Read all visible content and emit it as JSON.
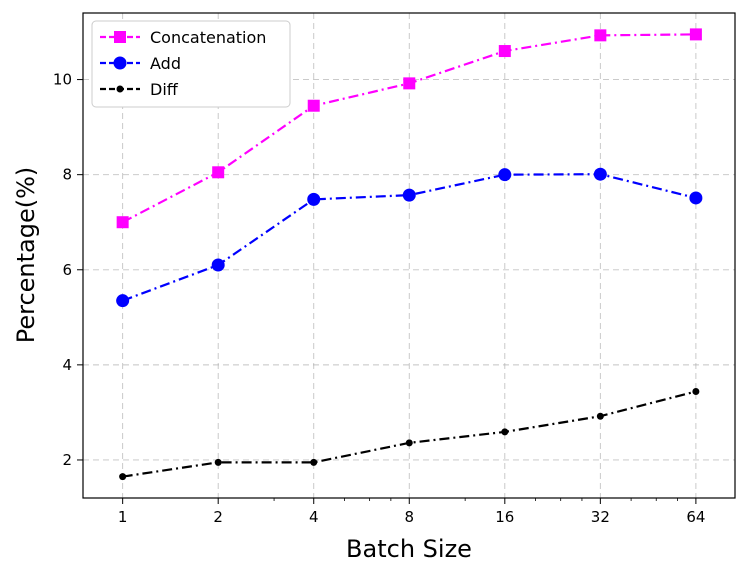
{
  "chart_data": {
    "type": "line",
    "title": "",
    "xlabel": "Batch Size",
    "ylabel": "Percentage(%)",
    "x_scale": "log2",
    "categories": [
      "1",
      "2",
      "4",
      "8",
      "16",
      "32",
      "64"
    ],
    "x": [
      1,
      2,
      4,
      8,
      16,
      32,
      64
    ],
    "xlim": [
      0.75,
      85
    ],
    "ylim": [
      1.2,
      11.4
    ],
    "yticks": [
      "2",
      "4",
      "6",
      "8",
      "10"
    ],
    "ytick_values": [
      2,
      4,
      6,
      8,
      10
    ],
    "grid": true,
    "legend_position": "top-left",
    "series": [
      {
        "name": "Concatenation",
        "color": "#ff00ff",
        "marker": "square",
        "linestyle": "dashdot",
        "values": [
          7.0,
          8.05,
          9.45,
          9.92,
          10.6,
          10.93,
          10.95
        ]
      },
      {
        "name": "Add",
        "color": "#0000ff",
        "marker": "circle",
        "linestyle": "dashdot",
        "values": [
          5.35,
          6.1,
          7.48,
          7.57,
          8.0,
          8.01,
          7.51
        ]
      },
      {
        "name": "Diff",
        "color": "#000000",
        "marker": "dot",
        "linestyle": "dashdot",
        "values": [
          1.65,
          1.95,
          1.95,
          2.36,
          2.59,
          2.92,
          3.44
        ]
      }
    ]
  }
}
